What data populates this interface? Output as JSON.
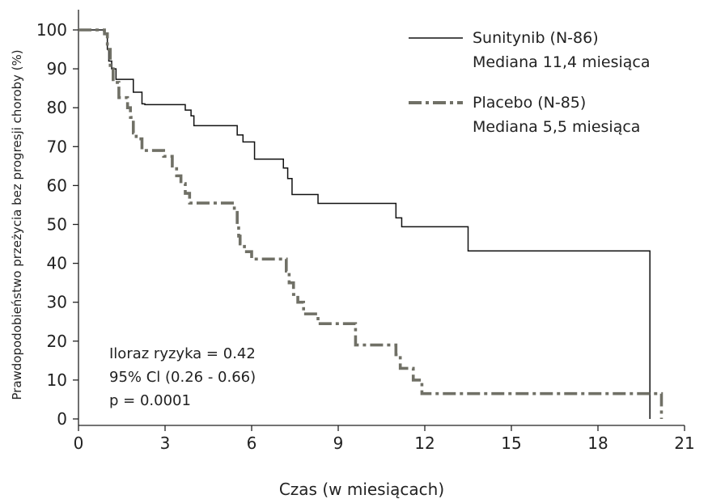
{
  "chart_data": {
    "type": "line",
    "xlabel": "Czas (w miesiącach)",
    "ylabel": "Prawdopodobieństwo przeżycia bez progresji choroby (%)",
    "xlim": [
      0,
      21
    ],
    "ylim": [
      0,
      100
    ],
    "xticks": [
      0,
      3,
      6,
      9,
      12,
      15,
      18,
      21
    ],
    "yticks": [
      0,
      10,
      20,
      30,
      40,
      50,
      60,
      70,
      80,
      90,
      100
    ],
    "grid": false,
    "legend_position": "top-right",
    "series": [
      {
        "name": "Sunitynib (N-86)",
        "subtitle": "Mediana 11,4 miesiąca",
        "color": "#111111",
        "style": "solid",
        "steps": [
          [
            0,
            100
          ],
          [
            0.9,
            99
          ],
          [
            1.0,
            95
          ],
          [
            1.05,
            92
          ],
          [
            1.15,
            90
          ],
          [
            1.3,
            87.3
          ],
          [
            1.9,
            84
          ],
          [
            2.2,
            81
          ],
          [
            2.3,
            80.8
          ],
          [
            3.7,
            79.4
          ],
          [
            3.9,
            77.9
          ],
          [
            4.0,
            75.4
          ],
          [
            5.5,
            73
          ],
          [
            5.7,
            71.2
          ],
          [
            6.1,
            66.8
          ],
          [
            7.1,
            64.5
          ],
          [
            7.25,
            61.8
          ],
          [
            7.4,
            57.7
          ],
          [
            8.3,
            55.4
          ],
          [
            11.0,
            51.7
          ],
          [
            11.2,
            49.4
          ],
          [
            13.5,
            43.2
          ],
          [
            19.8,
            0
          ]
        ],
        "end": 19.8
      },
      {
        "name": "Placebo (N-85)",
        "subtitle": "Mediana 5,5 miesiąca",
        "color": "#707066",
        "style": "dashed",
        "steps": [
          [
            0,
            100
          ],
          [
            0.9,
            99
          ],
          [
            1.0,
            95
          ],
          [
            1.1,
            90
          ],
          [
            1.2,
            86.5
          ],
          [
            1.4,
            82.6
          ],
          [
            1.7,
            80
          ],
          [
            1.8,
            77.5
          ],
          [
            1.9,
            73.5
          ],
          [
            2.0,
            72
          ],
          [
            2.2,
            69
          ],
          [
            2.95,
            67.5
          ],
          [
            3.25,
            65
          ],
          [
            3.4,
            62.5
          ],
          [
            3.55,
            60.5
          ],
          [
            3.7,
            58
          ],
          [
            3.85,
            55.5
          ],
          [
            5.4,
            53.5
          ],
          [
            5.5,
            50
          ],
          [
            5.55,
            47
          ],
          [
            5.6,
            45
          ],
          [
            5.75,
            43
          ],
          [
            6.0,
            41.1
          ],
          [
            7.2,
            38
          ],
          [
            7.3,
            35
          ],
          [
            7.45,
            32
          ],
          [
            7.6,
            30
          ],
          [
            7.8,
            27
          ],
          [
            8.3,
            24.5
          ],
          [
            9.6,
            19
          ],
          [
            11.0,
            16.5
          ],
          [
            11.15,
            13
          ],
          [
            11.6,
            10
          ],
          [
            11.9,
            6.5
          ],
          [
            20.2,
            0
          ]
        ],
        "end": 20.2
      }
    ],
    "annotations": [
      "Iloraz ryzyka = 0.42",
      "95% Cl (0.26 - 0.66)",
      "p = 0.0001"
    ]
  }
}
